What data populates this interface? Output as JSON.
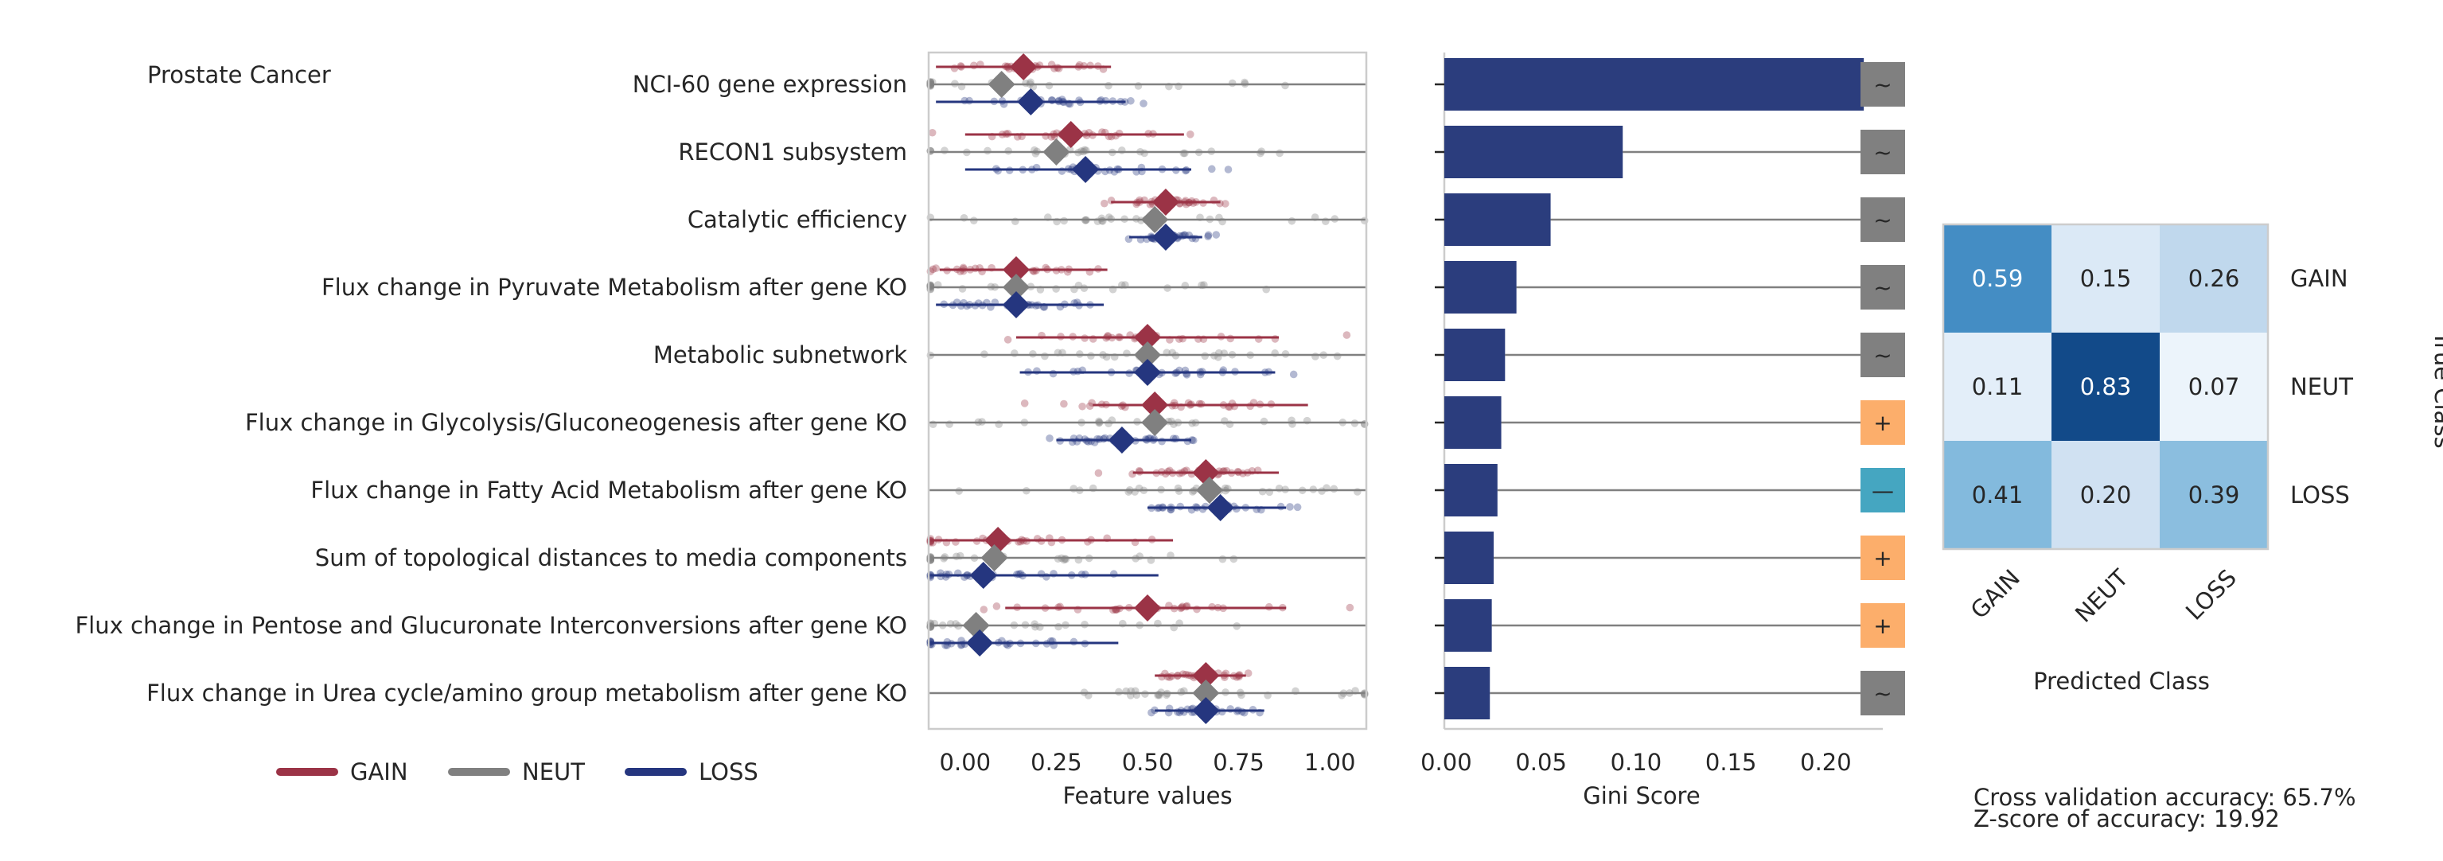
{
  "figure_title": "Prostate Cancer",
  "colors": {
    "GAIN": "#9b3346",
    "NEUT": "#808080",
    "LOSS": "#25367f",
    "bar": "#2b3d7d",
    "sign_tilde": "#808080",
    "sign_plus": "#fcae6b",
    "sign_minus": "#45a6c1"
  },
  "chart_data": [
    {
      "type": "scatter",
      "xlabel": "Feature values",
      "xlim": [
        -0.1,
        1.1
      ],
      "xticks": [
        "0.00",
        "0.25",
        "0.50",
        "0.75",
        "1.00"
      ],
      "grid": false,
      "legend_position": "bottom",
      "categories": [
        "NCI-60 gene expression",
        "RECON1 subsystem",
        "Catalytic efficiency",
        "Flux change in Pyruvate Metabolism after gene KO",
        "Metabolic subnetwork",
        "Flux change in Glycolysis/Gluconeogenesis after gene KO",
        "Flux change in Fatty Acid Metabolism after gene KO",
        "Sum of topological distances to media components",
        "Flux change in Pentose and Glucuronate Interconversions after gene KO",
        "Flux change in Urea cycle/amino group metabolism after gene KO"
      ],
      "series": [
        {
          "name": "GAIN",
          "means": [
            0.16,
            0.29,
            0.55,
            0.14,
            0.5,
            0.52,
            0.66,
            0.09,
            0.5,
            0.66
          ],
          "ranges": [
            [
              -0.08,
              0.4
            ],
            [
              0.0,
              0.6
            ],
            [
              0.4,
              0.7
            ],
            [
              -0.07,
              0.39
            ],
            [
              0.14,
              0.86
            ],
            [
              0.35,
              0.94
            ],
            [
              0.46,
              0.86
            ],
            [
              -0.1,
              0.57
            ],
            [
              0.11,
              0.88
            ],
            [
              0.52,
              0.77
            ]
          ]
        },
        {
          "name": "NEUT",
          "means": [
            0.1,
            0.25,
            0.52,
            0.14,
            0.5,
            0.52,
            0.67,
            0.08,
            0.03,
            0.66
          ],
          "ranges": [
            [
              -0.1,
              1.1
            ],
            [
              -0.1,
              1.1
            ],
            [
              -0.1,
              1.1
            ],
            [
              -0.1,
              1.1
            ],
            [
              -0.1,
              1.1
            ],
            [
              -0.1,
              1.1
            ],
            [
              -0.1,
              1.1
            ],
            [
              -0.1,
              1.1
            ],
            [
              -0.1,
              1.1
            ],
            [
              -0.1,
              1.1
            ]
          ]
        },
        {
          "name": "LOSS",
          "means": [
            0.18,
            0.33,
            0.55,
            0.14,
            0.5,
            0.43,
            0.7,
            0.05,
            0.04,
            0.66
          ],
          "ranges": [
            [
              -0.08,
              0.44
            ],
            [
              0.0,
              0.62
            ],
            [
              0.45,
              0.65
            ],
            [
              -0.08,
              0.38
            ],
            [
              0.15,
              0.85
            ],
            [
              0.25,
              0.62
            ],
            [
              0.5,
              0.88
            ],
            [
              -0.1,
              0.53
            ],
            [
              -0.1,
              0.42
            ],
            [
              0.52,
              0.82
            ]
          ]
        }
      ]
    },
    {
      "type": "bar",
      "orientation": "horizontal",
      "xlabel": "Gini Score",
      "xlim": [
        -0.001,
        0.23
      ],
      "xticks": [
        "0.00",
        "0.05",
        "0.10",
        "0.15",
        "0.20"
      ],
      "values": [
        0.22,
        0.093,
        0.055,
        0.037,
        0.031,
        0.029,
        0.027,
        0.025,
        0.024,
        0.023
      ],
      "signs": [
        "~",
        "~",
        "~",
        "~",
        "~",
        "+",
        "—",
        "+",
        "+",
        "~"
      ]
    },
    {
      "type": "heatmap",
      "xlabel": "Predicted Class",
      "ylabel": "True Class",
      "x_categories": [
        "GAIN",
        "NEUT",
        "LOSS"
      ],
      "y_categories": [
        "GAIN",
        "NEUT",
        "LOSS"
      ],
      "values": [
        [
          0.59,
          0.15,
          0.26
        ],
        [
          0.11,
          0.83,
          0.07
        ],
        [
          0.41,
          0.2,
          0.39
        ]
      ],
      "labels": [
        [
          "0.59",
          "0.15",
          "0.26"
        ],
        [
          "0.11",
          "0.83",
          "0.07"
        ],
        [
          "0.41",
          "0.20",
          "0.39"
        ]
      ]
    }
  ],
  "accuracy_text": "Cross validation accuracy: 65.7%",
  "zscore_text": "Z-score of accuracy: 19.92"
}
